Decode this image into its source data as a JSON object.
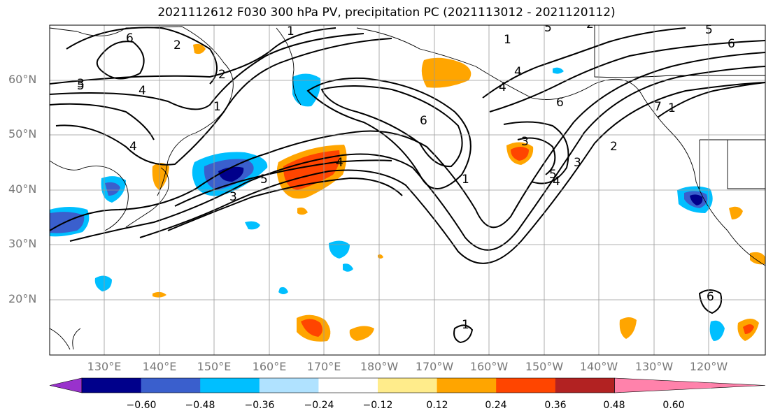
{
  "title": "2021112612 F030 300 hPa PV, precipitation PC (2021113012 - 2021120112)",
  "lat_labels": [
    "60°N",
    "50°N",
    "40°N",
    "30°N",
    "20°N"
  ],
  "lon_labels": [
    "130°E",
    "140°E",
    "150°E",
    "160°E",
    "170°E",
    "180°W",
    "170°W",
    "160°W",
    "150°W",
    "140°W",
    "130°W",
    "120°W"
  ],
  "colorbar": {
    "ticks": [
      "−0.60",
      "−0.48",
      "−0.36",
      "−0.24",
      "−0.12",
      "0.12",
      "0.24",
      "0.36",
      "0.48",
      "0.60"
    ],
    "colors": [
      "#9932cc",
      "#00008b",
      "#3a5fcd",
      "#00bfff",
      "#b0e2ff",
      "#ffffff",
      "#ffec8b",
      "#ffa500",
      "#ff4500",
      "#b22222",
      "#ff82ab"
    ]
  },
  "contour_labels": [
    "1",
    "2",
    "3",
    "4",
    "5",
    "6",
    "1",
    "2",
    "4",
    "5",
    "3",
    "1",
    "2",
    "4",
    "6",
    "3",
    "4",
    "5",
    "6",
    "7",
    "1",
    "2",
    "3",
    "4",
    "5",
    "6",
    "4",
    "5",
    "6",
    "1",
    "1"
  ]
}
